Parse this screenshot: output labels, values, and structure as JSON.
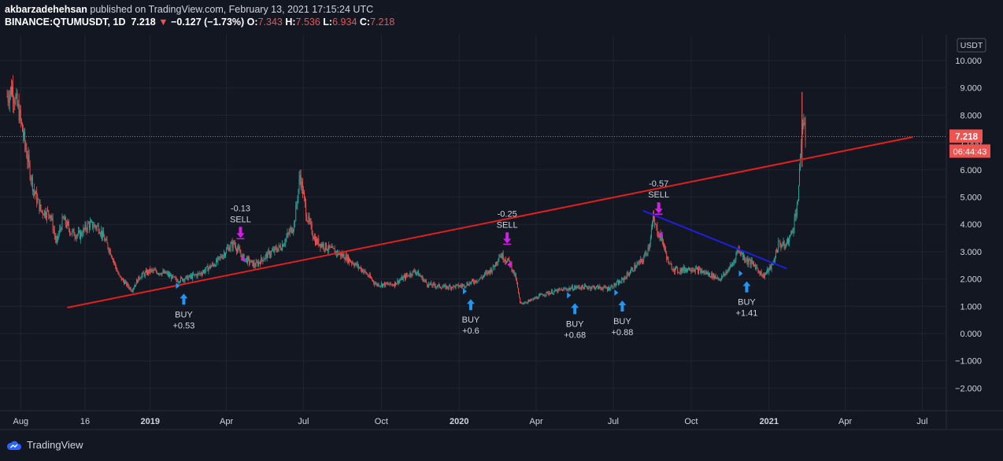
{
  "header": {
    "author": "akbarzadehehsan",
    "publish_text": "published on TradingView.com, February 13, 2021 17:15:24 UTC",
    "symbol": "BINANCE:QTUMUSDT, 1D",
    "last": "7.218",
    "change": "−0.127 (−1.73%)",
    "open_label": "O:",
    "open": "7.343",
    "high_label": "H:",
    "high": "7.536",
    "low_label": "L:",
    "low": "6.934",
    "close_label": "C:",
    "close": "7.218"
  },
  "price_axis": {
    "currency": "USDT",
    "last_price_label": "7.218",
    "countdown": "06:44:43"
  },
  "footer": {
    "brand": "TradingView"
  },
  "colors": {
    "background": "#131722",
    "grid": "#1f2430",
    "up": "#26a69a",
    "down": "#ef5350",
    "trendline": "#e01f1f",
    "downtrend": "#1f1fd6",
    "buy": "#2196f3",
    "sell": "#d21fe8",
    "text": "#d1d4dc"
  },
  "chart_data": {
    "type": "candlestick",
    "x_range": [
      "2018-07-15",
      "2021-08-15"
    ],
    "ylim": [
      -2.5,
      10.5
    ],
    "y_ticks": [
      {
        "v": 10,
        "label": "10.000"
      },
      {
        "v": 9,
        "label": "9.000"
      },
      {
        "v": 8,
        "label": "8.000"
      },
      {
        "v": 7,
        "label": "7.000"
      },
      {
        "v": 6,
        "label": "6.000"
      },
      {
        "v": 5,
        "label": "5.000"
      },
      {
        "v": 4,
        "label": "4.000"
      },
      {
        "v": 3,
        "label": "3.000"
      },
      {
        "v": 2,
        "label": "2.000"
      },
      {
        "v": 1,
        "label": "1.000"
      },
      {
        "v": 0,
        "label": "0.000"
      },
      {
        "v": -1,
        "label": "−1.000"
      },
      {
        "v": -2,
        "label": "−2.000"
      }
    ],
    "x_ticks": [
      {
        "date": "2018-08-01",
        "label": "Aug",
        "bold": false
      },
      {
        "date": "2018-10-16",
        "label": "16",
        "bold": false
      },
      {
        "date": "2019-01-01",
        "label": "2019",
        "bold": true
      },
      {
        "date": "2019-04-01",
        "label": "Apr",
        "bold": false
      },
      {
        "date": "2019-07-01",
        "label": "Jul",
        "bold": false
      },
      {
        "date": "2019-10-01",
        "label": "Oct",
        "bold": false
      },
      {
        "date": "2020-01-01",
        "label": "2020",
        "bold": true
      },
      {
        "date": "2020-04-01",
        "label": "Apr",
        "bold": false
      },
      {
        "date": "2020-07-01",
        "label": "Jul",
        "bold": false
      },
      {
        "date": "2020-10-01",
        "label": "Oct",
        "bold": false
      },
      {
        "date": "2021-01-01",
        "label": "2021",
        "bold": true
      },
      {
        "date": "2021-04-01",
        "label": "Apr",
        "bold": false
      },
      {
        "date": "2021-07-01",
        "label": "Jul",
        "bold": false
      }
    ],
    "price_path": [
      [
        "2018-07-16",
        8.7
      ],
      [
        "2018-07-22",
        9.0
      ],
      [
        "2018-07-30",
        8.1
      ],
      [
        "2018-08-08",
        6.6
      ],
      [
        "2018-08-16",
        5.3
      ],
      [
        "2018-08-25",
        4.5
      ],
      [
        "2018-09-05",
        4.4
      ],
      [
        "2018-09-12",
        3.3
      ],
      [
        "2018-09-20",
        4.2
      ],
      [
        "2018-09-30",
        3.7
      ],
      [
        "2018-10-10",
        3.6
      ],
      [
        "2018-10-20",
        4.0
      ],
      [
        "2018-11-01",
        3.9
      ],
      [
        "2018-11-15",
        3.0
      ],
      [
        "2018-11-25",
        2.1
      ],
      [
        "2018-12-10",
        1.6
      ],
      [
        "2018-12-20",
        2.1
      ],
      [
        "2019-01-01",
        2.3
      ],
      [
        "2019-01-20",
        2.2
      ],
      [
        "2019-02-01",
        1.95
      ],
      [
        "2019-02-15",
        2.05
      ],
      [
        "2019-03-01",
        2.2
      ],
      [
        "2019-03-20",
        2.6
      ],
      [
        "2019-04-05",
        3.2
      ],
      [
        "2019-04-10",
        3.3
      ],
      [
        "2019-04-20",
        2.8
      ],
      [
        "2019-05-05",
        2.5
      ],
      [
        "2019-05-20",
        2.9
      ],
      [
        "2019-06-05",
        3.2
      ],
      [
        "2019-06-20",
        4.0
      ],
      [
        "2019-06-27",
        5.8
      ],
      [
        "2019-07-05",
        4.3
      ],
      [
        "2019-07-15",
        3.4
      ],
      [
        "2019-08-01",
        3.1
      ],
      [
        "2019-08-20",
        2.8
      ],
      [
        "2019-09-10",
        2.3
      ],
      [
        "2019-09-25",
        1.8
      ],
      [
        "2019-10-15",
        1.8
      ],
      [
        "2019-10-25",
        2.0
      ],
      [
        "2019-11-10",
        2.3
      ],
      [
        "2019-11-25",
        1.8
      ],
      [
        "2019-12-15",
        1.7
      ],
      [
        "2020-01-05",
        1.75
      ],
      [
        "2020-01-25",
        2.0
      ],
      [
        "2020-02-10",
        2.4
      ],
      [
        "2020-02-18",
        2.9
      ],
      [
        "2020-03-01",
        2.6
      ],
      [
        "2020-03-08",
        2.0
      ],
      [
        "2020-03-13",
        1.1
      ],
      [
        "2020-03-25",
        1.2
      ],
      [
        "2020-04-10",
        1.45
      ],
      [
        "2020-05-01",
        1.6
      ],
      [
        "2020-05-20",
        1.7
      ],
      [
        "2020-06-10",
        1.7
      ],
      [
        "2020-06-25",
        1.65
      ],
      [
        "2020-07-10",
        1.9
      ],
      [
        "2020-07-25",
        2.4
      ],
      [
        "2020-08-05",
        2.7
      ],
      [
        "2020-08-12",
        3.2
      ],
      [
        "2020-08-17",
        4.2
      ],
      [
        "2020-08-20",
        3.9
      ],
      [
        "2020-08-28",
        3.4
      ],
      [
        "2020-09-05",
        2.5
      ],
      [
        "2020-09-15",
        2.3
      ],
      [
        "2020-10-01",
        2.4
      ],
      [
        "2020-10-20",
        2.2
      ],
      [
        "2020-11-05",
        2.0
      ],
      [
        "2020-11-20",
        2.6
      ],
      [
        "2020-11-25",
        3.1
      ],
      [
        "2020-12-05",
        2.7
      ],
      [
        "2020-12-15",
        2.5
      ],
      [
        "2020-12-25",
        2.1
      ],
      [
        "2021-01-05",
        2.5
      ],
      [
        "2021-01-12",
        3.3
      ],
      [
        "2021-01-20",
        3.2
      ],
      [
        "2021-01-28",
        3.7
      ],
      [
        "2021-02-02",
        4.5
      ],
      [
        "2021-02-05",
        5.2
      ],
      [
        "2021-02-09",
        7.8
      ],
      [
        "2021-02-13",
        7.218
      ]
    ],
    "trendlines": [
      {
        "name": "rising-support",
        "from": [
          "2018-09-25",
          0.95
        ],
        "to": [
          "2021-06-20",
          7.2
        ],
        "color": "#e01f1f"
      },
      {
        "name": "falling-resistance",
        "from": [
          "2020-08-05",
          4.5
        ],
        "to": [
          "2021-01-22",
          2.38
        ],
        "color": "#1f1fd6"
      }
    ],
    "signals": [
      {
        "type": "buy",
        "date": "2019-02-05",
        "price": 1.75,
        "label": "BUY",
        "value": "+0.53"
      },
      {
        "type": "sell",
        "date": "2019-04-13",
        "price": 3.1,
        "label": "SELL",
        "value": "-0.13"
      },
      {
        "type": "buy",
        "date": "2020-01-10",
        "price": 1.55,
        "label": "BUY",
        "value": "+0.6"
      },
      {
        "type": "sell",
        "date": "2020-02-22",
        "price": 2.9,
        "label": "SELL",
        "value": "-0.25"
      },
      {
        "type": "buy",
        "date": "2020-05-12",
        "price": 1.4,
        "label": "BUY",
        "value": "+0.68"
      },
      {
        "type": "buy",
        "date": "2020-07-07",
        "price": 1.5,
        "label": "BUY",
        "value": "+0.88"
      },
      {
        "type": "sell",
        "date": "2020-08-19",
        "price": 4.0,
        "label": "SELL",
        "value": "-0.57"
      },
      {
        "type": "buy",
        "date": "2020-12-01",
        "price": 2.2,
        "label": "BUY",
        "value": "+1.41"
      }
    ]
  }
}
